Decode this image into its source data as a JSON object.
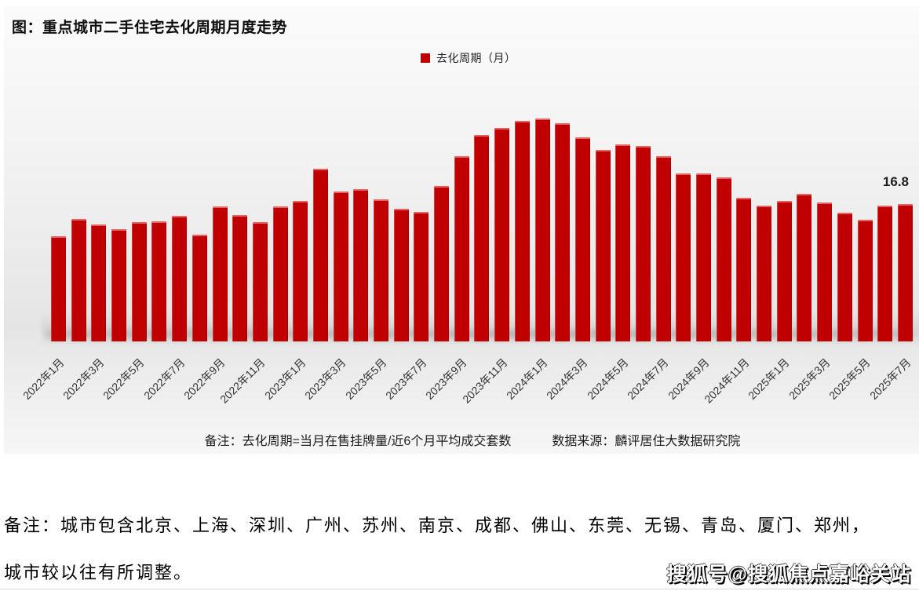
{
  "chart": {
    "title": "图：重点城市二手住宅去化周期月度走势",
    "legend_label": "去化周期（月）",
    "footnote_definition": "备注：去化周期=当月在售挂牌量/近6个月平均成交套数",
    "footnote_source": "数据来源：麟评居住大数据研究院",
    "last_value_label": "16.8",
    "bar_color": "#c00000"
  },
  "chart_data": {
    "type": "bar",
    "title": "图：重点城市二手住宅去化周期月度走势",
    "legend": [
      "去化周期（月）"
    ],
    "legend_position": "top-center",
    "grid": false,
    "y_axis_visible": false,
    "ylabel": "去化周期（月）",
    "ylim": [
      0,
      30
    ],
    "bar_color": "#c00000",
    "categories": [
      "2022年1月",
      "2022年2月",
      "2022年3月",
      "2022年4月",
      "2022年5月",
      "2022年6月",
      "2022年7月",
      "2022年8月",
      "2022年9月",
      "2022年10月",
      "2022年11月",
      "2022年12月",
      "2023年1月",
      "2023年2月",
      "2023年3月",
      "2023年4月",
      "2023年5月",
      "2023年6月",
      "2023年7月",
      "2023年8月",
      "2023年9月",
      "2023年10月",
      "2023年11月",
      "2023年12月",
      "2024年1月",
      "2024年2月",
      "2024年3月",
      "2024年4月",
      "2024年5月",
      "2024年6月",
      "2024年7月",
      "2024年8月",
      "2024年9月",
      "2024年10月",
      "2024年11月",
      "2024年12月",
      "2025年1月",
      "2025年2月",
      "2025年3月",
      "2025年4月",
      "2025年5月",
      "2025年6月",
      "2025年7月"
    ],
    "values": [
      12.9,
      15.0,
      14.3,
      13.8,
      14.6,
      14.7,
      15.4,
      13.1,
      16.5,
      15.5,
      14.6,
      16.5,
      17.2,
      21.2,
      18.4,
      18.7,
      17.4,
      16.3,
      15.9,
      19.0,
      22.7,
      25.3,
      26.2,
      27.0,
      27.3,
      26.7,
      25.0,
      23.5,
      24.1,
      23.9,
      22.7,
      20.6,
      20.6,
      20.1,
      17.6,
      16.6,
      17.2,
      18.1,
      17.0,
      15.8,
      14.9,
      16.6,
      16.8
    ],
    "xtick_labels": [
      "2022年1月",
      "2022年3月",
      "2022年5月",
      "2022年7月",
      "2022年9月",
      "2022年11月",
      "2023年1月",
      "2023年3月",
      "2023年5月",
      "2023年7月",
      "2023年9月",
      "2023年11月",
      "2024年1月",
      "2024年3月",
      "2024年5月",
      "2024年7月",
      "2024年9月",
      "2024年11月",
      "2025年1月",
      "2025年3月",
      "2025年5月",
      "2025年7月"
    ],
    "annotations": [
      {
        "text": "16.8",
        "category": "2025年7月"
      }
    ]
  },
  "notes": {
    "line1": "备注：城市包含北京、上海、深圳、广州、苏州、南京、成都、佛山、东莞、无锡、青岛、厦门、郑州，",
    "line2": "城市较以往有所调整。"
  },
  "watermark": {
    "text": "搜狐号@搜狐焦点嘉峪关站"
  }
}
